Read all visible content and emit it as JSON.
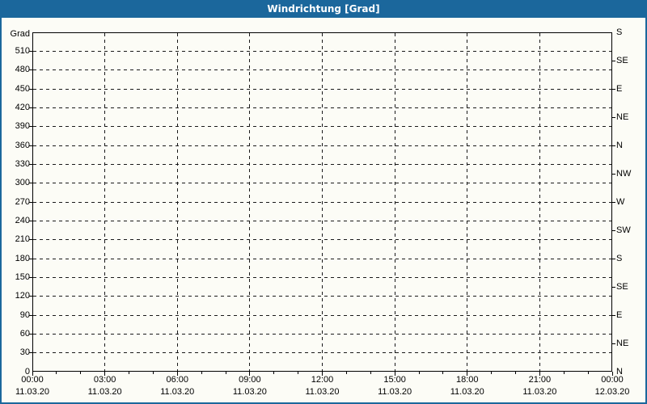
{
  "window": {
    "title": "Windrichtung [Grad]"
  },
  "chart_data": {
    "type": "line",
    "title": "Windrichtung [Grad]",
    "series": [],
    "grid": true,
    "plot_background": "empty (no data plotted)",
    "y_axis_left": {
      "label": "Grad",
      "min": 0,
      "max": 540,
      "step": 30,
      "ticks": [
        0,
        30,
        60,
        90,
        120,
        150,
        180,
        210,
        240,
        270,
        300,
        330,
        360,
        390,
        420,
        450,
        480,
        510
      ]
    },
    "y_axis_right": {
      "step": 45,
      "ticks": [
        {
          "value": 540,
          "label": "S"
        },
        {
          "value": 495,
          "label": "SE"
        },
        {
          "value": 450,
          "label": "E"
        },
        {
          "value": 405,
          "label": "NE"
        },
        {
          "value": 360,
          "label": "N"
        },
        {
          "value": 315,
          "label": "NW"
        },
        {
          "value": 270,
          "label": "W"
        },
        {
          "value": 225,
          "label": "SW"
        },
        {
          "value": 180,
          "label": "S"
        },
        {
          "value": 135,
          "label": "SE"
        },
        {
          "value": 90,
          "label": "E"
        },
        {
          "value": 45,
          "label": "NE"
        },
        {
          "value": 0,
          "label": "N"
        }
      ]
    },
    "x_axis": {
      "span_hours": 24,
      "minor_step_hours": 1,
      "major_ticks": [
        {
          "hour": 0,
          "time": "00:00",
          "date": "11.03.20"
        },
        {
          "hour": 3,
          "time": "03:00",
          "date": "11.03.20"
        },
        {
          "hour": 6,
          "time": "06:00",
          "date": "11.03.20"
        },
        {
          "hour": 9,
          "time": "09:00",
          "date": "11.03.20"
        },
        {
          "hour": 12,
          "time": "12:00",
          "date": "11.03.20"
        },
        {
          "hour": 15,
          "time": "15:00",
          "date": "11.03.20"
        },
        {
          "hour": 18,
          "time": "18:00",
          "date": "11.03.20"
        },
        {
          "hour": 21,
          "time": "21:00",
          "date": "11.03.20"
        },
        {
          "hour": 24,
          "time": "00:00",
          "date": "12.03.20"
        }
      ]
    },
    "colors": {
      "titlebar": "#1b679c",
      "frame_border": "#1b679c",
      "title_text": "#ffffff",
      "grid": "#1a1a1a",
      "axis": "#000000",
      "label_text": "#000000",
      "background": "#fcfcf6"
    }
  }
}
